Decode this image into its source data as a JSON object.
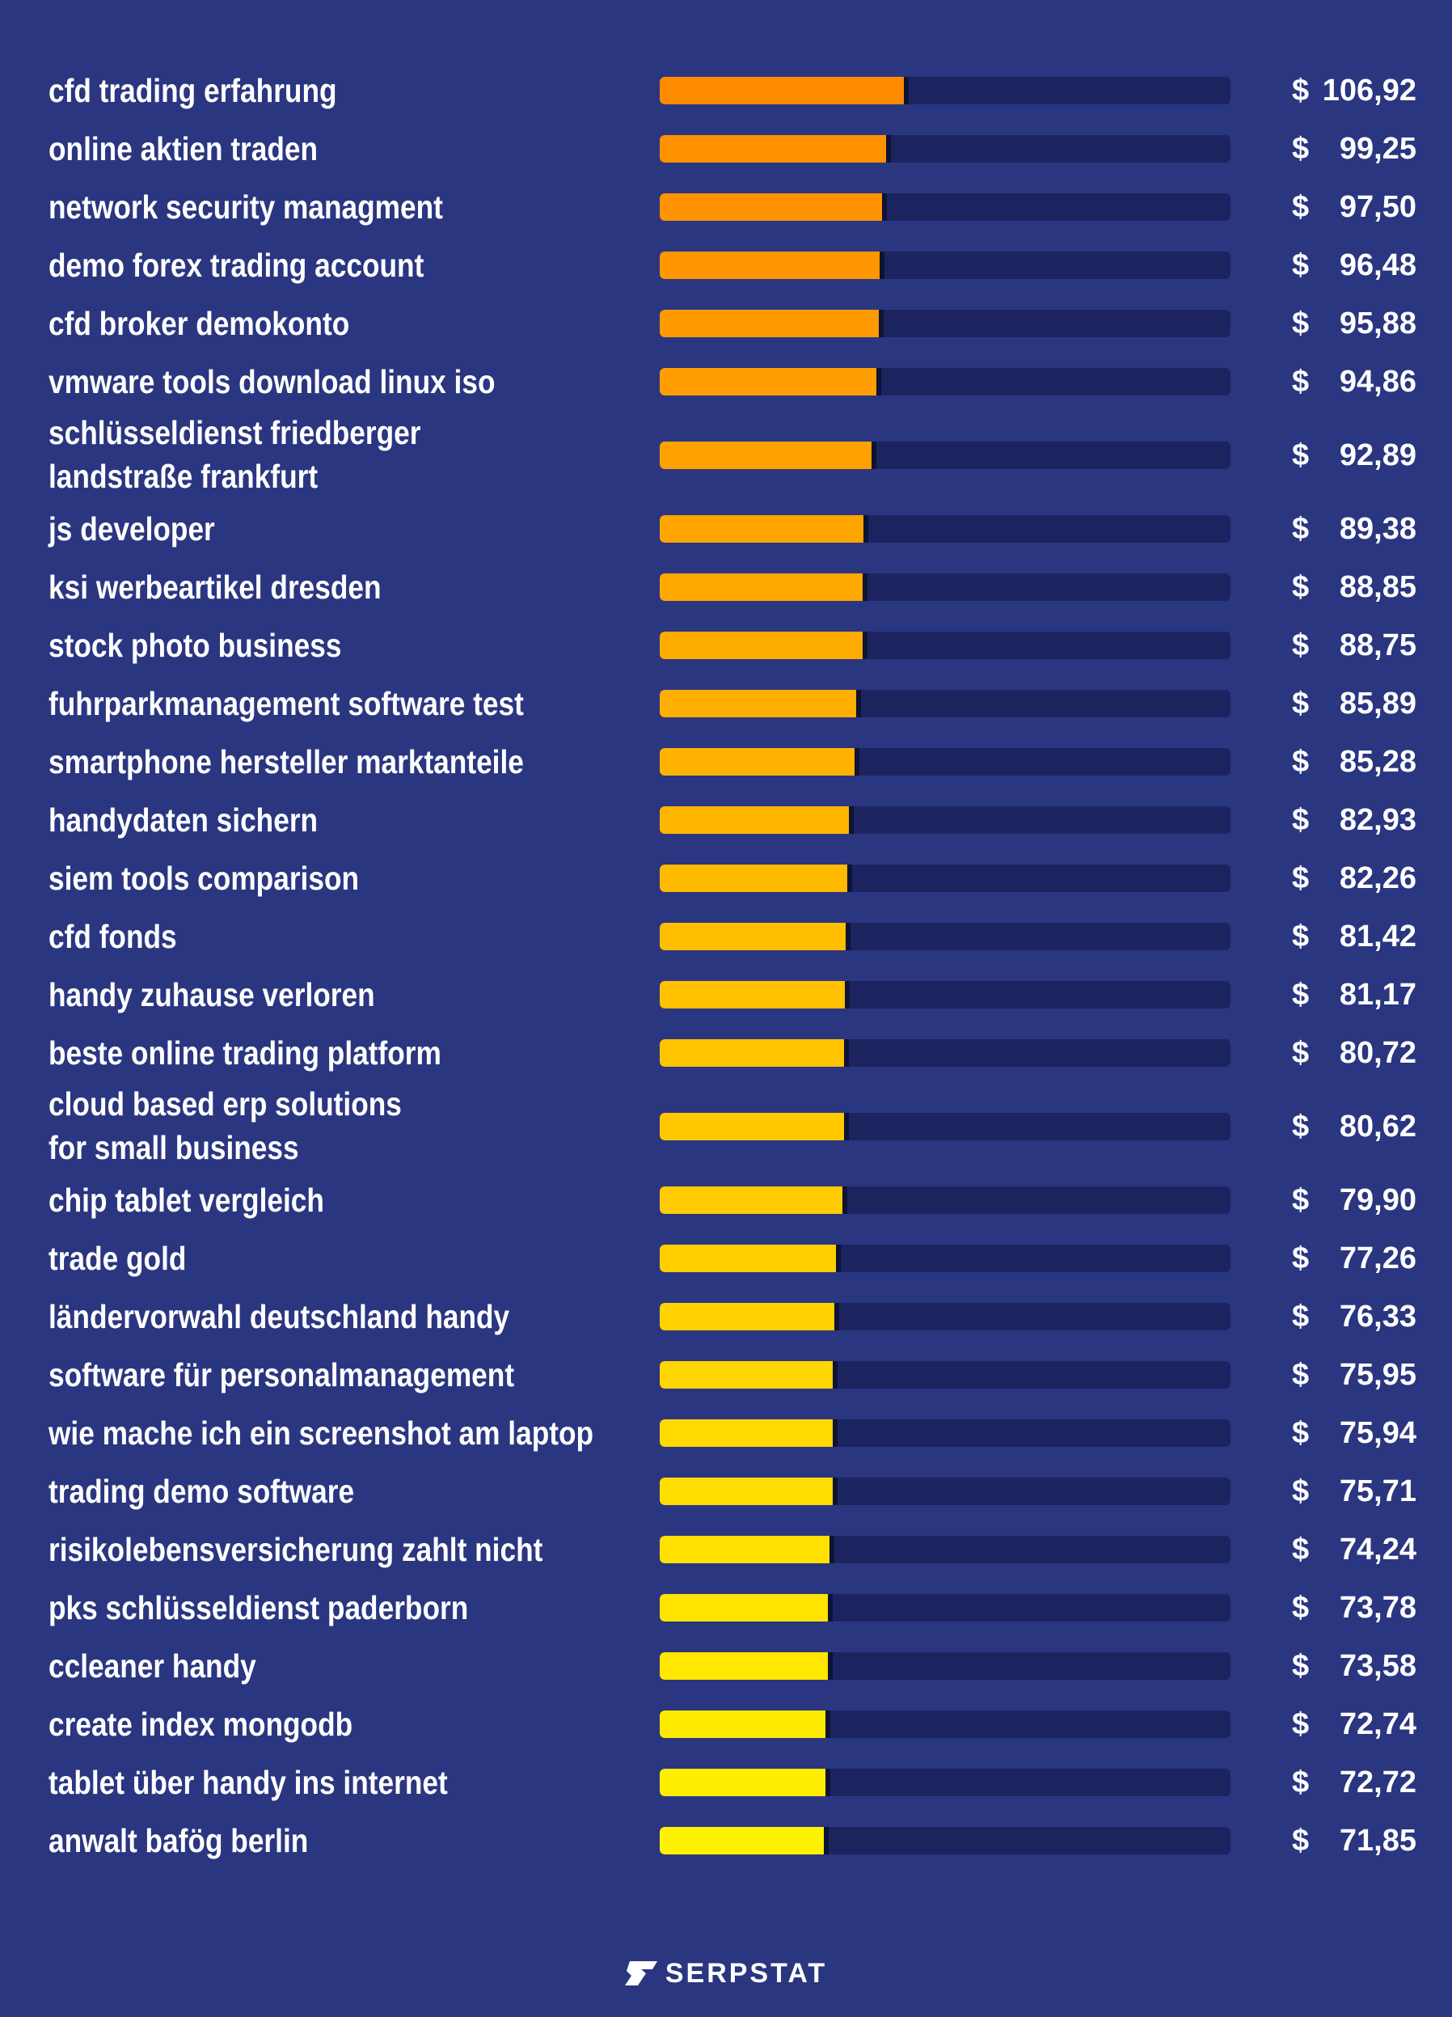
{
  "chart_data": {
    "type": "bar",
    "orientation": "horizontal",
    "currency_symbol": "$",
    "xlim": [
      0,
      250
    ],
    "grid": false,
    "categories": [
      "cfd trading erfahrung",
      "online aktien traden",
      "network security managment",
      "demo forex trading account",
      "cfd broker demokonto",
      "vmware tools download linux iso",
      "schlüsseldienst friedberger\nlandstraße frankfurt",
      "js developer",
      "ksi werbeartikel dresden",
      "stock photo business",
      "fuhrparkmanagement software test",
      "smartphone hersteller marktanteile",
      "handydaten sichern",
      "siem tools comparison",
      "cfd fonds",
      "handy zuhause verloren",
      "beste online trading platform",
      "cloud based erp solutions\nfor small business",
      "chip tablet vergleich",
      "trade gold",
      "ländervorwahl deutschland handy",
      "software für personalmanagement",
      "wie mache ich ein screenshot am laptop",
      "trading demo software",
      "risikolebensversicherung zahlt nicht",
      "pks schlüsseldienst paderborn",
      "ccleaner handy",
      "create index mongodb",
      "tablet über handy ins internet",
      "anwalt bafög berlin"
    ],
    "values": [
      106.92,
      99.25,
      97.5,
      96.48,
      95.88,
      94.86,
      92.89,
      89.38,
      88.85,
      88.75,
      85.89,
      85.28,
      82.93,
      82.26,
      81.42,
      81.17,
      80.72,
      80.62,
      79.9,
      77.26,
      76.33,
      75.95,
      75.94,
      75.71,
      74.24,
      73.78,
      73.58,
      72.74,
      72.72,
      71.85
    ],
    "value_labels": [
      "106,92",
      "99,25",
      "97,50",
      "96,48",
      "95,88",
      "94,86",
      "92,89",
      "89,38",
      "88,85",
      "88,75",
      "85,89",
      "85,28",
      "82,93",
      "82,26",
      "81,42",
      "81,17",
      "80,72",
      "80,62",
      "79,90",
      "77,26",
      "76,33",
      "75,95",
      "75,94",
      "75,71",
      "74,24",
      "73,78",
      "73,58",
      "72,74",
      "72,72",
      "71,85"
    ],
    "colors": {
      "background": "#2b3681",
      "track": "#1c2460",
      "bar_gradient_top": "#ff8c00",
      "bar_gradient_bottom": "#fff200"
    }
  },
  "footer": {
    "brand": "SERPSTAT",
    "logo_icon": "serpstat-logo-icon"
  }
}
